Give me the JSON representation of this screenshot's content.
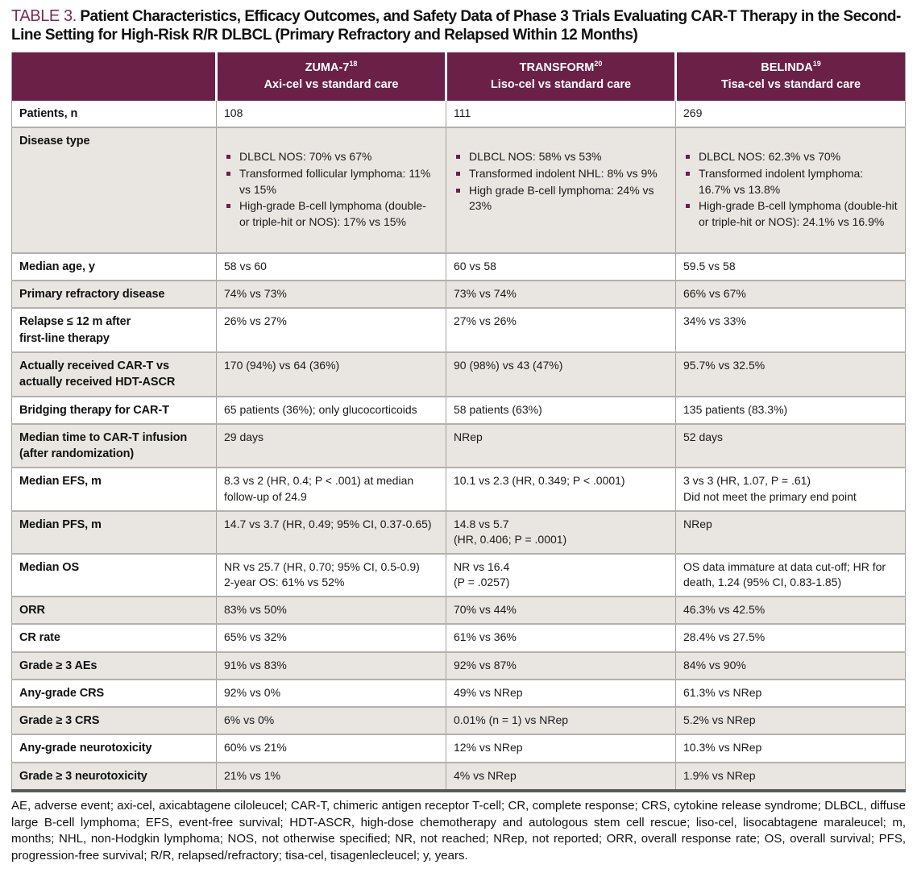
{
  "title": {
    "label": "TABLE 3.",
    "text": "Patient Characteristics, Efficacy Outcomes, and Safety Data of Phase 3 Trials Evaluating CAR-T Therapy in the Second-Line Setting for High-Risk R/R DLBCL (Primary Refractory and Relapsed Within 12 Months)"
  },
  "colors": {
    "header_maroon": "#6a2047",
    "title_maroon": "#7c2b56",
    "row_shade": "#e9e6e2",
    "row_border": "#b4b1ad",
    "bottom_border": "#58595c"
  },
  "table": {
    "columns": [
      {
        "trial": "ZUMA-7",
        "ref": "18",
        "subtitle": "Axi-cel vs standard care"
      },
      {
        "trial": "TRANSFORM",
        "ref": "20",
        "subtitle": "Liso-cel vs standard care"
      },
      {
        "trial": "BELINDA",
        "ref": "19",
        "subtitle": "Tisa-cel vs standard care"
      }
    ],
    "rows": [
      {
        "label": "Patients, n",
        "cells": [
          "108",
          "111",
          "269"
        ]
      },
      {
        "label": "Disease type",
        "cells": [
          {
            "bullets": [
              "DLBCL NOS: 70% vs 67%",
              "Transformed follicular lymphoma: 11% vs 15%",
              "High-grade B-cell lymphoma (double- or triple-hit or NOS): 17% vs 15%"
            ]
          },
          {
            "bullets": [
              "DLBCL NOS: 58% vs 53%",
              "Transformed indolent NHL: 8% vs 9%",
              "High grade B-cell lymphoma: 24% vs 23%"
            ]
          },
          {
            "bullets": [
              "DLBCL NOS: 62.3% vs 70%",
              "Transformed indolent lymphoma: 16.7% vs 13.8%",
              "High-grade B-cell lymphoma (double-hit or triple-hit or NOS): 24.1% vs 16.9%"
            ]
          }
        ]
      },
      {
        "label": "Median age, y",
        "cells": [
          "58 vs 60",
          "60 vs 58",
          "59.5 vs 58"
        ]
      },
      {
        "label": "Primary refractory disease",
        "cells": [
          "74% vs 73%",
          "73% vs 74%",
          "66% vs 67%"
        ]
      },
      {
        "label": "Relapse ≤ 12 m after\nfirst-line therapy",
        "cells": [
          "26% vs 27%",
          "27% vs 26%",
          "34% vs 33%"
        ]
      },
      {
        "label": "Actually received CAR-T vs\nactually received HDT-ASCR",
        "cells": [
          "170 (94%) vs 64 (36%)",
          "90 (98%) vs 43 (47%)",
          "95.7% vs 32.5%"
        ]
      },
      {
        "label": "Bridging therapy for CAR-T",
        "cells": [
          "65 patients (36%); only glucocorticoids",
          "58 patients (63%)",
          "135 patients (83.3%)"
        ]
      },
      {
        "label": "Median time to CAR-T infusion\n(after randomization)",
        "cells": [
          "29 days",
          "NRep",
          "52 days"
        ]
      },
      {
        "label": "Median EFS, m",
        "cells": [
          "8.3 vs 2 (HR, 0.4; P < .001) at median follow-up of 24.9",
          "10.1 vs 2.3 (HR, 0.349; P < .0001)",
          "3 vs 3 (HR, 1.07, P = .61)\nDid not meet the primary end point"
        ]
      },
      {
        "label": "Median PFS, m",
        "cells": [
          "14.7 vs 3.7 (HR, 0.49; 95% CI, 0.37-0.65)",
          "14.8 vs 5.7\n(HR, 0.406; P = .0001)",
          "NRep"
        ]
      },
      {
        "label": "Median OS",
        "cells": [
          "NR vs 25.7 (HR, 0.70; 95% CI, 0.5-0.9)\n2-year OS: 61% vs 52%",
          "NR vs 16.4\n(P = .0257)",
          "OS data immature at data cut-off; HR for death, 1.24 (95% CI, 0.83-1.85)"
        ]
      },
      {
        "label": "ORR",
        "cells": [
          "83% vs 50%",
          "70% vs 44%",
          "46.3% vs 42.5%"
        ]
      },
      {
        "label": "CR rate",
        "cells": [
          "65% vs 32%",
          "61% vs 36%",
          "28.4% vs 27.5%"
        ]
      },
      {
        "label": "Grade ≥ 3 AEs",
        "cells": [
          "91% vs 83%",
          "92% vs 87%",
          "84% vs 90%"
        ]
      },
      {
        "label": "Any-grade CRS",
        "cells": [
          "92% vs 0%",
          "49% vs NRep",
          "61.3% vs NRep"
        ]
      },
      {
        "label": "Grade ≥ 3 CRS",
        "cells": [
          "6% vs 0%",
          "0.01% (n = 1) vs NRep",
          "5.2% vs NRep"
        ]
      },
      {
        "label": "Any-grade neurotoxicity",
        "cells": [
          "60% vs 21%",
          "12% vs NRep",
          "10.3% vs NRep"
        ]
      },
      {
        "label": "Grade ≥ 3 neurotoxicity",
        "cells": [
          "21% vs 1%",
          "4% vs NRep",
          "1.9% vs NRep"
        ]
      }
    ]
  },
  "footnote": "AE, adverse event; axi-cel, axicabtagene ciloleucel; CAR-T, chimeric antigen receptor T-cell; CR, complete response; CRS, cytokine release syndrome; DLBCL, diffuse large B-cell lymphoma; EFS, event-free survival; HDT-ASCR, high-dose chemotherapy and autologous stem cell rescue; liso-cel, lisocabtagene maraleucel; m, months; NHL, non-Hodgkin lymphoma; NOS, not otherwise specified; NR, not reached; NRep, not reported; ORR, overall response rate; OS, overall survival; PFS, progression-free survival; R/R, relapsed/refractory; tisa-cel, tisagenlecleucel; y, years."
}
